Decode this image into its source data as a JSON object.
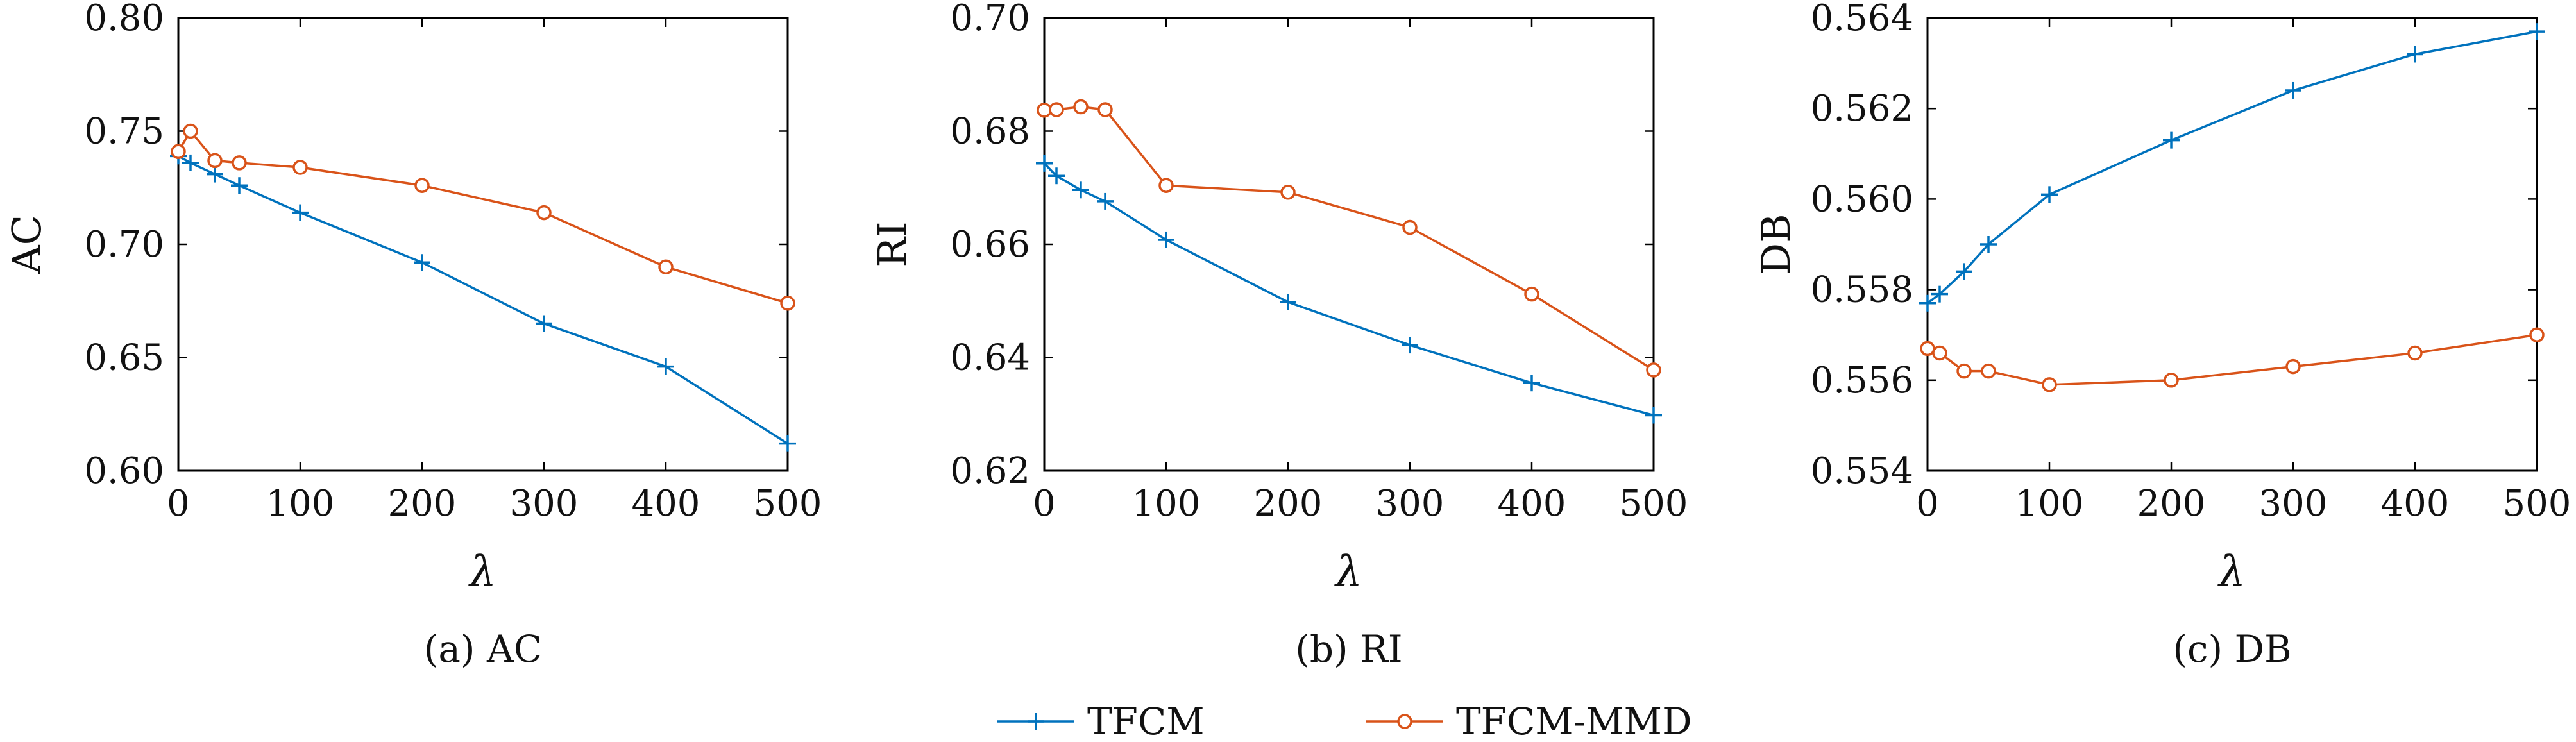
{
  "colors": {
    "tfcm": "#0072BD",
    "tfcm_mmd": "#D95319",
    "axis": "#000000"
  },
  "legend": {
    "position": "bottom-center",
    "items": [
      "TFCM",
      "TFCM-MMD"
    ]
  },
  "chart_data": [
    {
      "type": "line",
      "caption": "(a) AC",
      "xlabel": "λ",
      "ylabel": "AC",
      "xlim": [
        0,
        500
      ],
      "ylim": [
        0.6,
        0.8
      ],
      "xticks": [
        0,
        100,
        200,
        300,
        400,
        500
      ],
      "yticks": [
        0.6,
        0.65,
        0.7,
        0.75,
        0.8
      ],
      "ytick_labels": [
        "0.60",
        "0.65",
        "0.70",
        "0.75",
        "0.80"
      ],
      "x": [
        0,
        10,
        30,
        50,
        100,
        200,
        300,
        400,
        500
      ],
      "series": [
        {
          "name": "TFCM",
          "marker": "plus",
          "values": [
            0.739,
            0.736,
            0.731,
            0.726,
            0.714,
            0.692,
            0.665,
            0.646,
            0.612
          ]
        },
        {
          "name": "TFCM-MMD",
          "marker": "circle",
          "values": [
            0.741,
            0.75,
            0.737,
            0.736,
            0.734,
            0.726,
            0.714,
            0.69,
            0.674
          ]
        }
      ]
    },
    {
      "type": "line",
      "caption": "(b) RI",
      "xlabel": "λ",
      "ylabel": "RI",
      "xlim": [
        0,
        500
      ],
      "ylim": [
        0.62,
        0.7
      ],
      "xticks": [
        0,
        100,
        200,
        300,
        400,
        500
      ],
      "yticks": [
        0.62,
        0.64,
        0.66,
        0.68,
        0.7
      ],
      "ytick_labels": [
        "0.62",
        "0.64",
        "0.66",
        "0.68",
        "0.70"
      ],
      "x": [
        0,
        10,
        30,
        50,
        100,
        200,
        300,
        400,
        500
      ],
      "series": [
        {
          "name": "TFCM",
          "marker": "plus",
          "values": [
            0.6743,
            0.6721,
            0.6696,
            0.6676,
            0.6608,
            0.6498,
            0.6422,
            0.6355,
            0.6298
          ]
        },
        {
          "name": "TFCM-MMD",
          "marker": "circle",
          "values": [
            0.6837,
            0.6838,
            0.6843,
            0.6838,
            0.6704,
            0.6692,
            0.663,
            0.6512,
            0.6378
          ]
        }
      ]
    },
    {
      "type": "line",
      "caption": "(c) DB",
      "xlabel": "λ",
      "ylabel": "DB",
      "xlim": [
        0,
        500
      ],
      "ylim": [
        0.554,
        0.564
      ],
      "xticks": [
        0,
        100,
        200,
        300,
        400,
        500
      ],
      "yticks": [
        0.554,
        0.556,
        0.558,
        0.56,
        0.562,
        0.564
      ],
      "ytick_labels": [
        "0.554",
        "0.556",
        "0.558",
        "0.560",
        "0.562",
        "0.564"
      ],
      "x": [
        0,
        10,
        30,
        50,
        100,
        200,
        300,
        400,
        500
      ],
      "series": [
        {
          "name": "TFCM",
          "marker": "plus",
          "values": [
            0.5577,
            0.5579,
            0.5584,
            0.559,
            0.5601,
            0.5613,
            0.5624,
            0.5632,
            0.5637
          ]
        },
        {
          "name": "TFCM-MMD",
          "marker": "circle",
          "values": [
            0.5567,
            0.5566,
            0.5562,
            0.5562,
            0.5559,
            0.556,
            0.5563,
            0.5566,
            0.557
          ]
        }
      ]
    }
  ]
}
